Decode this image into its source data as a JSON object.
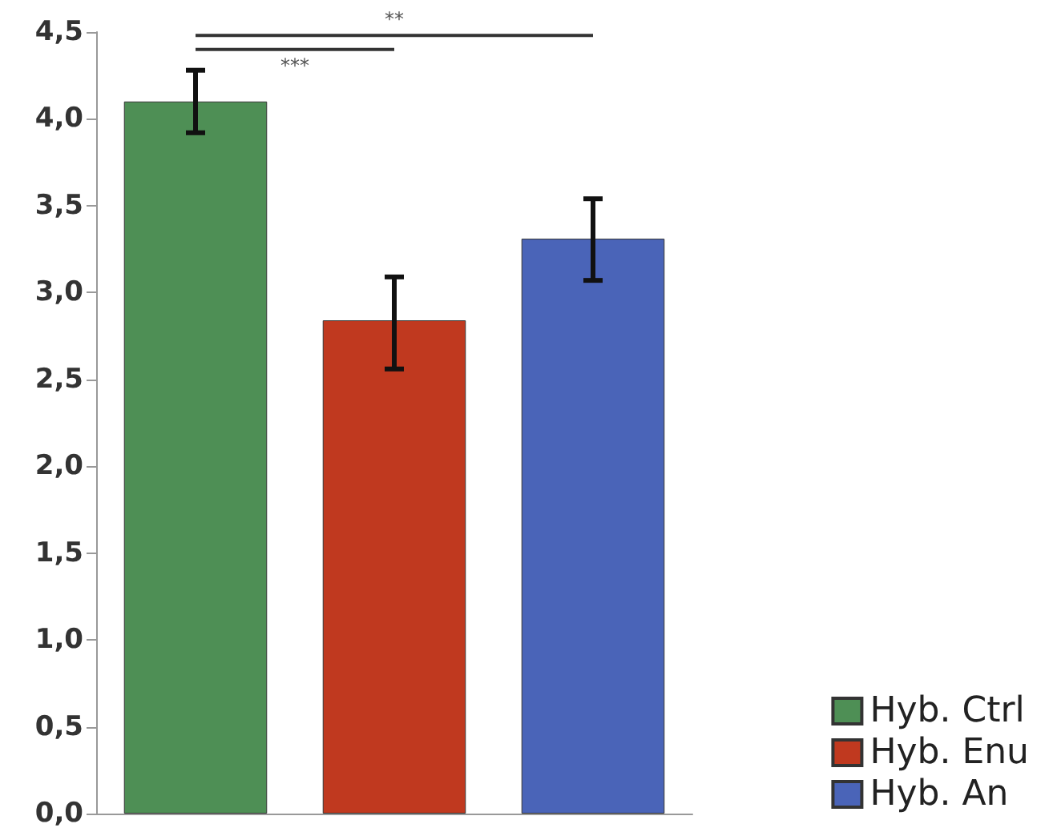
{
  "chart_data": {
    "type": "bar",
    "categories": [
      null,
      null,
      null
    ],
    "series": [
      {
        "name": "Hyb. Ctrl",
        "color": "#4e8f55",
        "values": [
          4.1,
          null,
          null
        ],
        "errors": [
          [
            3.92,
            4.28
          ],
          null,
          null
        ]
      },
      {
        "name": "Hyb. Enu",
        "color": "#c0391f",
        "values": [
          null,
          2.84,
          null
        ],
        "errors": [
          null,
          [
            2.56,
            3.09
          ],
          null
        ]
      },
      {
        "name": "Hyb. An",
        "color": "#4a64b8",
        "values": [
          null,
          null,
          3.31
        ],
        "errors": [
          null,
          null,
          [
            3.07,
            3.54
          ]
        ]
      }
    ],
    "ylim": [
      0,
      4.5
    ],
    "yticks": [
      {
        "value": 0,
        "label": "0,0"
      },
      {
        "value": 0.5,
        "label": "0,5"
      },
      {
        "value": 1,
        "label": "1,0"
      },
      {
        "value": 1.5,
        "label": "1,5"
      },
      {
        "value": 2,
        "label": "2,0"
      },
      {
        "value": 2.5,
        "label": "2,5"
      },
      {
        "value": 3,
        "label": "3,0"
      },
      {
        "value": 3.5,
        "label": "3,5"
      },
      {
        "value": 4,
        "label": "4,0"
      },
      {
        "value": 4.5,
        "label": "4,5"
      }
    ],
    "tick_labels": "y",
    "grid": false,
    "legend": "bottom right",
    "annotations": [
      "***",
      "**"
    ]
  }
}
